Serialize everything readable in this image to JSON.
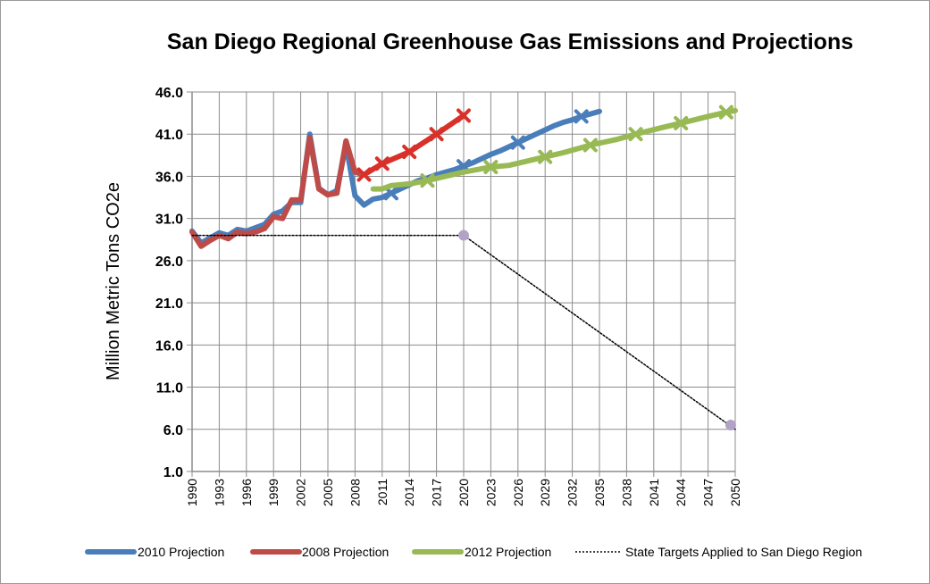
{
  "chart_data": {
    "type": "line",
    "title": "San Diego Regional Greenhouse Gas Emissions and Projections",
    "xlabel": "",
    "ylabel": "Million Metric Tons CO2e",
    "xlim": [
      1990,
      2050
    ],
    "ylim": [
      1.0,
      46.0
    ],
    "y_ticks": [
      "1.0",
      "6.0",
      "11.0",
      "16.0",
      "21.0",
      "26.0",
      "31.0",
      "36.0",
      "41.0",
      "46.0"
    ],
    "x_ticks": [
      "1990",
      "1993",
      "1996",
      "1999",
      "2002",
      "2005",
      "2008",
      "2011",
      "2014",
      "2017",
      "2020",
      "2023",
      "2026",
      "2029",
      "2032",
      "2035",
      "2038",
      "2041",
      "2044",
      "2047",
      "2050"
    ],
    "grid": "vertical and horizontal",
    "legend_position": "bottom",
    "series": [
      {
        "name": "2010 Projection",
        "color": "#4a7ebb",
        "style": "thick-solid",
        "x": [
          1990,
          1991,
          1992,
          1993,
          1994,
          1995,
          1996,
          1997,
          1998,
          1999,
          2000,
          2001,
          2002,
          2003,
          2004,
          2005,
          2006,
          2007,
          2008,
          2009,
          2010,
          2011,
          2012,
          2013,
          2014,
          2015,
          2016,
          2017,
          2018,
          2019,
          2020,
          2021,
          2022,
          2023,
          2024,
          2025,
          2026,
          2027,
          2028,
          2029,
          2030,
          2031,
          2032,
          2033,
          2034,
          2035
        ],
        "values": [
          29.5,
          28.1,
          28.7,
          29.3,
          29.0,
          29.7,
          29.5,
          29.9,
          30.3,
          31.5,
          31.9,
          32.9,
          32.9,
          41.0,
          34.6,
          33.8,
          34.3,
          39.8,
          33.7,
          32.6,
          33.3,
          33.5,
          34.0,
          34.5,
          35.0,
          35.5,
          35.8,
          36.2,
          36.5,
          36.8,
          37.2,
          37.6,
          38.1,
          38.6,
          39.0,
          39.5,
          40.0,
          40.5,
          41.0,
          41.5,
          42.0,
          42.4,
          42.7,
          43.1,
          43.4,
          43.7
        ],
        "markers_x": [
          2012,
          2020,
          2026,
          2033
        ],
        "markers_y": [
          34.0,
          37.2,
          40.0,
          43.1
        ]
      },
      {
        "name": "2008 Projection",
        "color": "#be4b48",
        "style": "thick-solid",
        "x": [
          1990,
          1991,
          1992,
          1993,
          1994,
          1995,
          1996,
          1997,
          1998,
          1999,
          2000,
          2001,
          2002,
          2003,
          2004,
          2005,
          2006,
          2007,
          2008,
          2009
        ],
        "values": [
          29.4,
          27.7,
          28.4,
          29.0,
          28.6,
          29.4,
          29.2,
          29.4,
          29.8,
          31.2,
          31.0,
          33.2,
          33.2,
          40.6,
          34.5,
          33.8,
          34.0,
          40.2,
          36.5,
          36.2
        ],
        "markers_x": [],
        "markers_y": []
      },
      {
        "name": "",
        "color": "#d9302a",
        "style": "thick-solid",
        "x": [
          2009,
          2011,
          2014,
          2017,
          2020
        ],
        "values": [
          36.2,
          37.5,
          38.9,
          41.0,
          43.2
        ],
        "markers_x": [
          2009,
          2011,
          2014,
          2017,
          2020
        ],
        "markers_y": [
          36.2,
          37.5,
          38.9,
          41.0,
          43.2
        ]
      },
      {
        "name": "2012 Projection",
        "color": "#98b954",
        "style": "thick-solid",
        "x": [
          2010,
          2011,
          2012,
          2014,
          2016,
          2018,
          2020,
          2022,
          2023,
          2025,
          2027,
          2029,
          2031,
          2034,
          2037,
          2039,
          2042,
          2044,
          2047,
          2049,
          2050
        ],
        "values": [
          34.5,
          34.5,
          34.9,
          35.1,
          35.5,
          36.0,
          36.5,
          36.9,
          37.1,
          37.3,
          37.8,
          38.3,
          38.8,
          39.7,
          40.4,
          41.0,
          41.8,
          42.3,
          43.1,
          43.6,
          43.8
        ],
        "markers_x": [
          2016,
          2023,
          2029,
          2034,
          2039,
          2044,
          2049
        ],
        "markers_y": [
          35.5,
          37.1,
          38.3,
          39.7,
          41.0,
          42.3,
          43.6
        ]
      },
      {
        "name": "State Targets Applied to San Diego Region",
        "color": "#000000",
        "style": "dotted",
        "x": [
          1990,
          2020,
          2050
        ],
        "values": [
          29.0,
          29.0,
          6.0
        ],
        "markers_x": [
          2020,
          2049.5
        ],
        "markers_y": [
          29.0,
          6.5
        ]
      }
    ]
  }
}
